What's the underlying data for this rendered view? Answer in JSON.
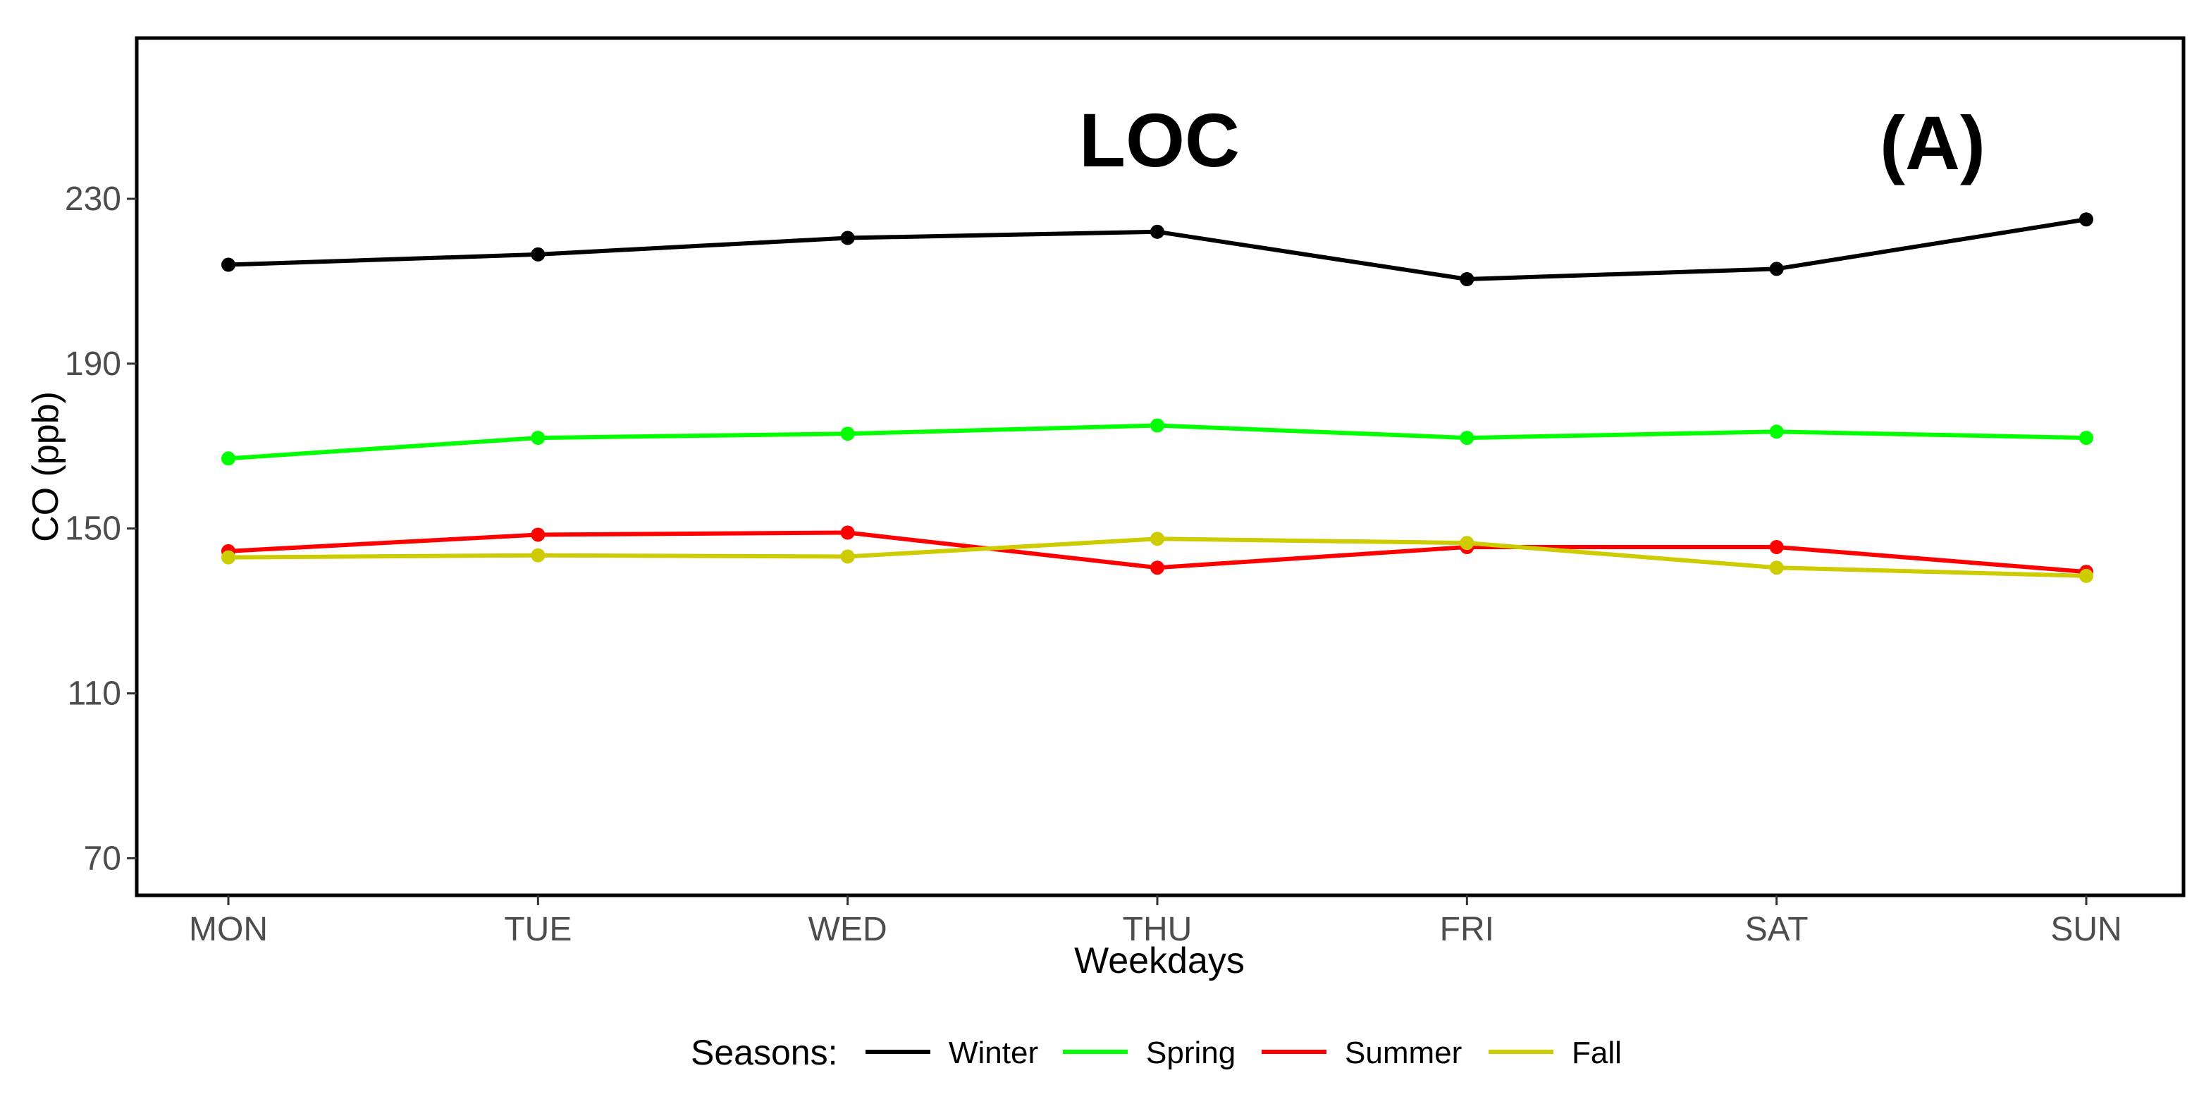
{
  "chart_data": {
    "type": "line",
    "categories": [
      "MON",
      "TUE",
      "WED",
      "THU",
      "FRI",
      "SAT",
      "SUN"
    ],
    "series": [
      {
        "name": "Winter",
        "color": "#000000",
        "values": [
          214,
          216.5,
          220.5,
          222,
          210.5,
          213,
          225
        ]
      },
      {
        "name": "Spring",
        "color": "#00ff00",
        "values": [
          167,
          172,
          173,
          175,
          172,
          173.5,
          172
        ]
      },
      {
        "name": "Summer",
        "color": "#ff0000",
        "values": [
          144.5,
          148.5,
          149,
          140.5,
          145.5,
          145.5,
          139.5
        ]
      },
      {
        "name": "Fall",
        "color": "#cccc00",
        "values": [
          143,
          143.5,
          143.2,
          147.5,
          146.5,
          140.5,
          138.5
        ]
      }
    ],
    "xlabel": "Weekdays",
    "ylabel": "CO (ppb)",
    "yticks": [
      70,
      110,
      150,
      190,
      230
    ],
    "ylim": [
      61,
      269
    ],
    "annotations": {
      "title": "LOC",
      "panel": "(A)"
    },
    "legend": {
      "title": "Seasons:",
      "position": "bottom"
    }
  }
}
